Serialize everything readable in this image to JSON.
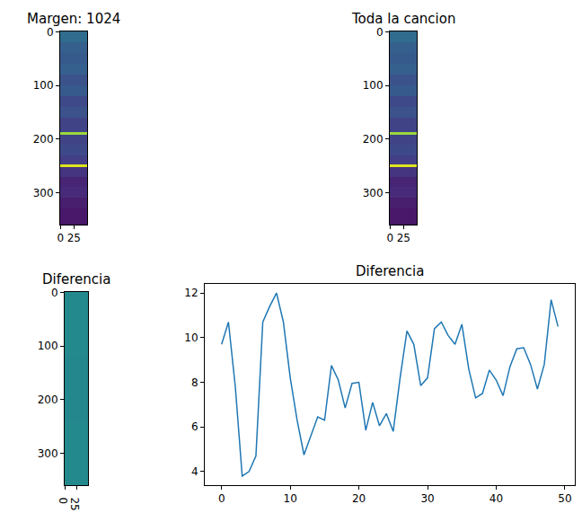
{
  "chart_data": [
    {
      "type": "heatmap",
      "title": "Margen: 1024",
      "color": "viridis",
      "x_edges": [
        -0.5,
        49.5
      ],
      "y_edges": [
        -0.5,
        20,
        40,
        60,
        80,
        100,
        120,
        140,
        160,
        187,
        192,
        210,
        230,
        248,
        253,
        270,
        290,
        310,
        330,
        359.5
      ],
      "cells": [
        [
          0.35
        ],
        [
          0.3
        ],
        [
          0.28
        ],
        [
          0.3
        ],
        [
          0.25
        ],
        [
          0.28
        ],
        [
          0.22
        ],
        [
          0.25
        ],
        [
          0.2
        ],
        [
          0.85
        ],
        [
          0.2
        ],
        [
          0.22
        ],
        [
          0.18
        ],
        [
          0.95
        ],
        [
          0.15
        ],
        [
          0.1
        ],
        [
          0.12
        ],
        [
          0.08
        ],
        [
          0.06
        ]
      ],
      "zlim": [
        0,
        1
      ],
      "xlim": [
        -0.5,
        49.5
      ],
      "ylim": [
        359.5,
        -0.5
      ],
      "xticks": [
        0,
        25
      ],
      "yticks": [
        0,
        100,
        200,
        300
      ]
    },
    {
      "type": "heatmap",
      "title": "Toda la cancion",
      "color": "viridis",
      "x_edges": [
        -0.5,
        49.5
      ],
      "y_edges": [
        -0.5,
        20,
        40,
        60,
        80,
        100,
        120,
        140,
        160,
        187,
        192,
        210,
        230,
        248,
        253,
        270,
        290,
        310,
        330,
        359.5
      ],
      "cells": [
        [
          0.35
        ],
        [
          0.3
        ],
        [
          0.28
        ],
        [
          0.3
        ],
        [
          0.25
        ],
        [
          0.28
        ],
        [
          0.22
        ],
        [
          0.25
        ],
        [
          0.2
        ],
        [
          0.85
        ],
        [
          0.2
        ],
        [
          0.22
        ],
        [
          0.18
        ],
        [
          0.95
        ],
        [
          0.15
        ],
        [
          0.1
        ],
        [
          0.12
        ],
        [
          0.08
        ],
        [
          0.06
        ]
      ],
      "zlim": [
        0,
        1
      ],
      "xlim": [
        -0.5,
        49.5
      ],
      "ylim": [
        359.5,
        -0.5
      ],
      "xticks": [
        0,
        25
      ],
      "yticks": [
        0,
        100,
        200,
        300
      ]
    },
    {
      "type": "heatmap",
      "title": "Diferencia",
      "color": "viridis",
      "x_edges": [
        -0.5,
        49.5
      ],
      "y_edges": [
        -0.5,
        120,
        240,
        359.5
      ],
      "cells": [
        [
          0.47
        ],
        [
          0.46
        ],
        [
          0.47
        ]
      ],
      "zlim": [
        0,
        1
      ],
      "xlim": [
        -0.5,
        49.5
      ],
      "ylim": [
        359.5,
        -0.5
      ],
      "xticks": [
        0,
        25
      ],
      "yticks": [
        0,
        100,
        200,
        300
      ]
    },
    {
      "type": "line",
      "title": "Diferencia",
      "color": "#1f77b4",
      "x": [
        0,
        1,
        2,
        3,
        4,
        5,
        6,
        7,
        8,
        9,
        10,
        11,
        12,
        13,
        14,
        15,
        16,
        17,
        18,
        19,
        20,
        21,
        22,
        23,
        24,
        25,
        26,
        27,
        28,
        29,
        30,
        31,
        32,
        33,
        34,
        35,
        36,
        37,
        38,
        39,
        40,
        41,
        42,
        43,
        44,
        45,
        46,
        47,
        48,
        49
      ],
      "values": [
        9.7,
        10.7,
        7.8,
        3.8,
        4.0,
        4.7,
        10.7,
        11.4,
        12.0,
        10.7,
        8.2,
        6.3,
        4.75,
        5.6,
        6.45,
        6.3,
        8.75,
        8.1,
        6.85,
        7.95,
        8.0,
        5.85,
        7.1,
        6.05,
        6.6,
        5.8,
        8.2,
        10.3,
        9.7,
        7.85,
        8.2,
        10.4,
        10.7,
        10.1,
        9.7,
        10.6,
        8.6,
        7.3,
        7.5,
        8.55,
        8.1,
        7.4,
        8.7,
        9.5,
        9.55,
        8.8,
        7.7,
        8.8,
        11.7,
        10.5
      ],
      "xlim": [
        -2.45,
        51.45
      ],
      "ylim": [
        3.39,
        12.41
      ],
      "xticks": [
        0,
        10,
        20,
        30,
        40,
        50
      ],
      "yticks": [
        4,
        6,
        8,
        10,
        12
      ]
    }
  ]
}
